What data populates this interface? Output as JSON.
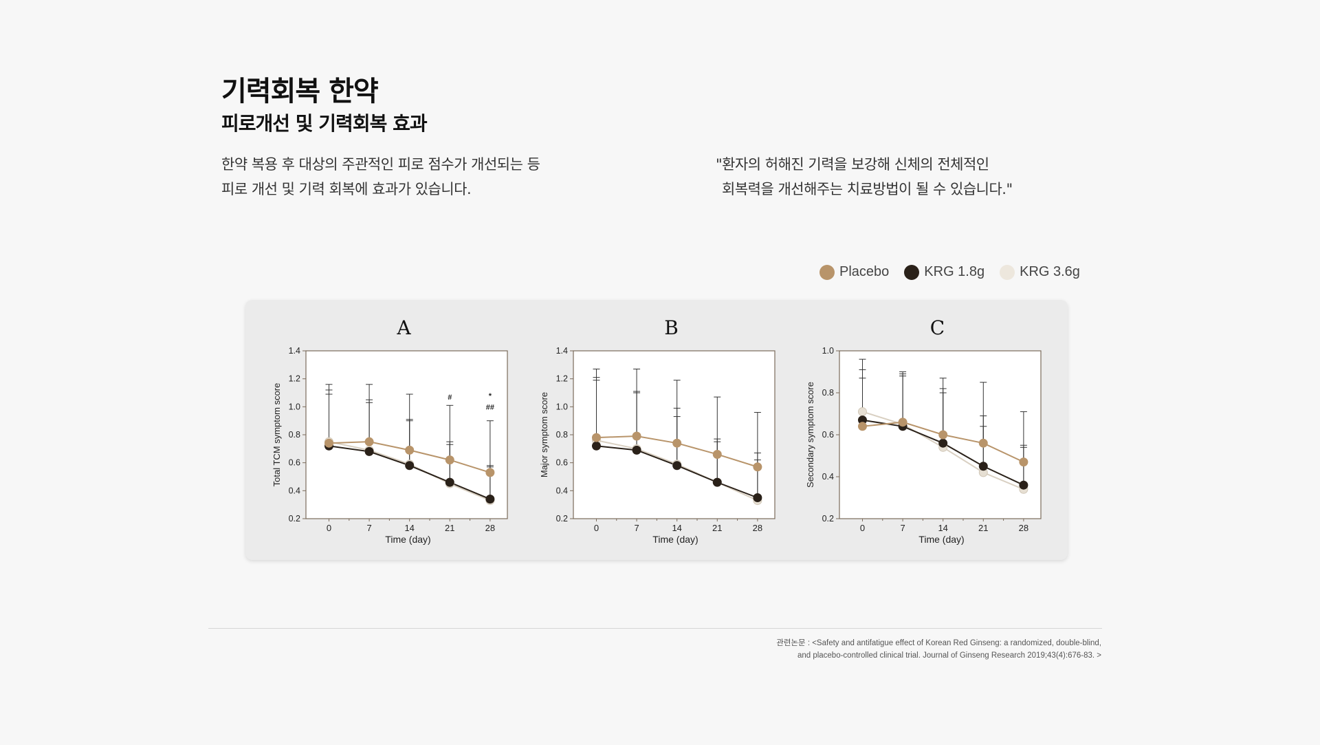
{
  "header": {
    "title": "기력회복 한약",
    "subtitle": "피로개선 및 기력회복 효과"
  },
  "description": {
    "left_line1": "한약 복용 후 대상의 주관적인 피로 점수가 개선되는 등",
    "left_line2": "피로 개선 및 기력 회복에 효과가 있습니다.",
    "right_line1": "\"환자의 허해진 기력을 보강해 신체의 전체적인",
    "right_line2": "회복력을 개선해주는 치료방법이 될 수 있습니다.\""
  },
  "legend": [
    {
      "label": "Placebo",
      "color": "#b8946a"
    },
    {
      "label": "KRG 1.8g",
      "color": "#2a2119"
    },
    {
      "label": "KRG 3.6g",
      "color": "#ede7dd"
    }
  ],
  "chart_data": [
    {
      "type": "line",
      "title": "A",
      "xlabel": "Time (day)",
      "ylabel": "Total TCM symptom score",
      "x": [
        0,
        7,
        14,
        21,
        28
      ],
      "xlim": [
        -4,
        31
      ],
      "ylim": [
        0.2,
        1.4
      ],
      "yticks": [
        "0.2",
        "0.4",
        "0.6",
        "0.8",
        "1.0",
        "1.2",
        "1.4"
      ],
      "series": [
        {
          "name": "Placebo",
          "color": "#b8946a",
          "values": [
            0.74,
            0.75,
            0.69,
            0.62,
            0.53
          ],
          "err_upper": [
            1.16,
            1.16,
            1.09,
            1.01,
            0.9
          ]
        },
        {
          "name": "KRG 1.8g",
          "color": "#2a2119",
          "values": [
            0.72,
            0.68,
            0.58,
            0.46,
            0.34
          ],
          "err_upper": [
            1.09,
            1.03,
            0.91,
            0.73,
            0.58
          ]
        },
        {
          "name": "KRG 3.6g",
          "color": "#e6dfd3",
          "values": [
            0.75,
            0.69,
            0.59,
            0.45,
            0.33
          ],
          "err_upper": [
            1.12,
            1.05,
            0.9,
            0.75,
            0.57
          ]
        }
      ],
      "annotations": [
        {
          "x": 21,
          "y": 1.05,
          "text": "#"
        },
        {
          "x": 28,
          "y": 1.06,
          "text": "*"
        },
        {
          "x": 28,
          "y": 0.98,
          "text": "##"
        }
      ]
    },
    {
      "type": "line",
      "title": "B",
      "xlabel": "Time (day)",
      "ylabel": "Major symptom score",
      "x": [
        0,
        7,
        14,
        21,
        28
      ],
      "xlim": [
        -4,
        31
      ],
      "ylim": [
        0.2,
        1.4
      ],
      "yticks": [
        "0.2",
        "0.4",
        "0.6",
        "0.8",
        "1.0",
        "1.2",
        "1.4"
      ],
      "series": [
        {
          "name": "Placebo",
          "color": "#b8946a",
          "values": [
            0.78,
            0.79,
            0.74,
            0.66,
            0.57
          ],
          "err_upper": [
            1.27,
            1.27,
            1.19,
            1.07,
            0.96
          ]
        },
        {
          "name": "KRG 1.8g",
          "color": "#2a2119",
          "values": [
            0.72,
            0.69,
            0.58,
            0.46,
            0.35
          ],
          "err_upper": [
            1.21,
            1.11,
            0.99,
            0.77,
            0.67
          ]
        },
        {
          "name": "KRG 3.6g",
          "color": "#e6dfd3",
          "values": [
            0.76,
            0.7,
            0.59,
            0.46,
            0.33
          ],
          "err_upper": [
            1.19,
            1.1,
            0.93,
            0.75,
            0.62
          ]
        }
      ],
      "annotations": []
    },
    {
      "type": "line",
      "title": "C",
      "xlabel": "Time (day)",
      "ylabel": "Secondary symptom score",
      "x": [
        0,
        7,
        14,
        21,
        28
      ],
      "xlim": [
        -4,
        31
      ],
      "ylim": [
        0.2,
        1.0
      ],
      "yticks": [
        "0.2",
        "0.4",
        "0.6",
        "0.8",
        "1.0"
      ],
      "series": [
        {
          "name": "Placebo",
          "color": "#b8946a",
          "values": [
            0.64,
            0.66,
            0.6,
            0.56,
            0.47
          ],
          "err_upper": [
            0.96,
            0.9,
            0.87,
            0.85,
            0.71
          ]
        },
        {
          "name": "KRG 1.8g",
          "color": "#2a2119",
          "values": [
            0.67,
            0.64,
            0.56,
            0.45,
            0.36
          ],
          "err_upper": [
            0.91,
            0.89,
            0.82,
            0.69,
            0.55
          ]
        },
        {
          "name": "KRG 3.6g",
          "color": "#e6dfd3",
          "values": [
            0.71,
            0.65,
            0.54,
            0.42,
            0.34
          ],
          "err_upper": [
            0.87,
            0.88,
            0.8,
            0.64,
            0.54
          ]
        }
      ],
      "annotations": []
    }
  ],
  "reference": {
    "line1": "관련논문 : <Safety and antifatigue effect of Korean Red Ginseng: a randomized, double-blind,",
    "line2": "and placebo-controlled clinical trial. Journal of Ginseng Research 2019;43(4):676-83. >"
  }
}
